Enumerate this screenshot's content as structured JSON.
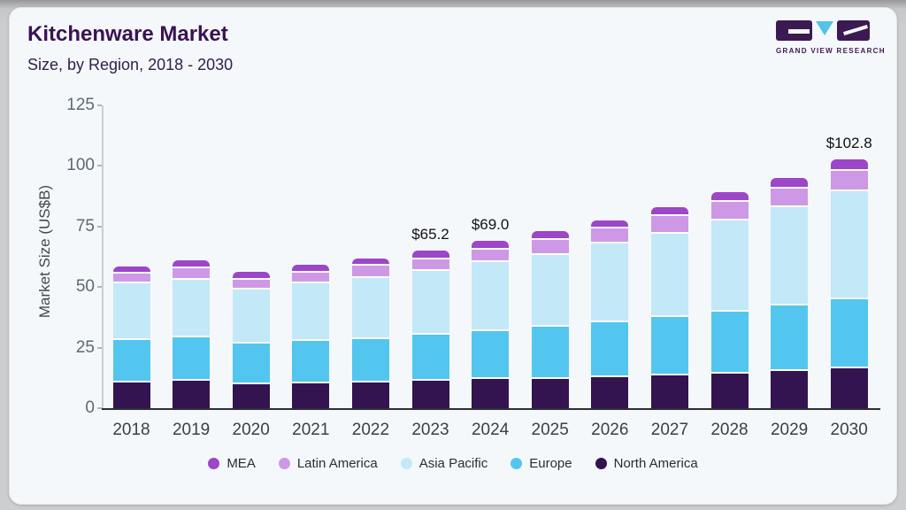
{
  "page": {
    "title": "Kitchenware Market",
    "subtitle": "Size, by Region, 2018 - 2030"
  },
  "logo": {
    "brand": "GRAND VIEW RESEARCH",
    "block_color": "#3b1a52",
    "triangle_color": "#55c3e6"
  },
  "chart_data": {
    "type": "bar",
    "stacked": true,
    "title": "Kitchenware Market",
    "subtitle": "Size, by Region, 2018 - 2030",
    "xlabel": "",
    "ylabel": "Market Size (US$B)",
    "ylim": [
      0,
      125
    ],
    "yticks": [
      0,
      25,
      50,
      75,
      100,
      125
    ],
    "grid": false,
    "legend_position": "bottom",
    "categories": [
      "2018",
      "2019",
      "2020",
      "2021",
      "2022",
      "2023",
      "2024",
      "2025",
      "2026",
      "2027",
      "2028",
      "2029",
      "2030"
    ],
    "series": [
      {
        "name": "North America",
        "color": "#331450",
        "values": [
          10.6,
          11.2,
          10.0,
          10.2,
          10.6,
          11.4,
          12.0,
          12.2,
          12.8,
          13.6,
          14.3,
          15.2,
          16.4
        ]
      },
      {
        "name": "Europe",
        "color": "#53c6ef",
        "values": [
          17.4,
          18.0,
          16.8,
          17.5,
          18.0,
          18.9,
          19.9,
          21.5,
          22.8,
          23.9,
          25.7,
          27.2,
          28.7
        ]
      },
      {
        "name": "Asia Pacific",
        "color": "#c3e8f7",
        "values": [
          23.5,
          23.8,
          22.2,
          23.8,
          25.2,
          26.2,
          28.3,
          29.7,
          32.3,
          34.6,
          37.4,
          40.7,
          44.5
        ]
      },
      {
        "name": "Latin America",
        "color": "#cd99e6",
        "values": [
          3.9,
          4.9,
          4.0,
          4.5,
          4.9,
          5.0,
          5.3,
          6.0,
          6.2,
          7.1,
          7.6,
          7.7,
          8.5
        ]
      },
      {
        "name": "MEA",
        "color": "#9c46c8",
        "values": [
          2.9,
          3.1,
          3.3,
          3.2,
          3.2,
          3.7,
          3.5,
          3.6,
          3.4,
          3.8,
          4.0,
          4.4,
          4.7
        ]
      }
    ],
    "legend": [
      "MEA",
      "Latin America",
      "Asia Pacific",
      "Europe",
      "North America"
    ],
    "annotations": [
      {
        "category": "2023",
        "text": "$65.2"
      },
      {
        "category": "2024",
        "text": "$69.0"
      },
      {
        "category": "2030",
        "text": "$102.8"
      }
    ]
  }
}
